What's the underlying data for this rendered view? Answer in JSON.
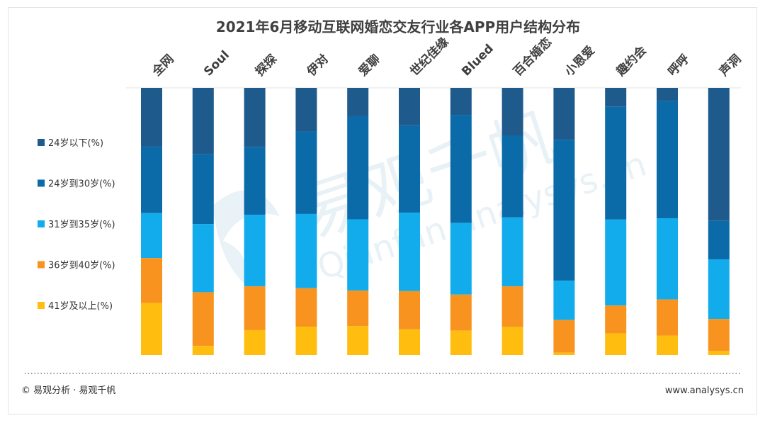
{
  "footer": {
    "copyright": "© 易观分析 · 易观千帆",
    "website": "www.analysys.cn"
  },
  "watermark": {
    "text_cn": "易观千帆",
    "text_en": "Qianfan.analysys.cn"
  },
  "chart_data": {
    "type": "bar",
    "stacked": true,
    "percent": true,
    "title": "2021年6月移动互联网婚恋交友行业各APP用户结构分布",
    "categories": [
      "全网",
      "Soul",
      "探探",
      "伊对",
      "爱聊",
      "世纪佳缘",
      "Blued",
      "百合婚恋",
      "小恩爱",
      "趣约会",
      "呼呼",
      "声洞"
    ],
    "series": [
      {
        "name": "24岁以下(%)",
        "color": "#1f5a8c",
        "values": [
          22.0,
          24.7,
          22.1,
          16.3,
          10.6,
          14.0,
          10.1,
          17.9,
          19.4,
          7.1,
          4.8,
          49.8
        ]
      },
      {
        "name": "24岁到30岁(%)",
        "color": "#0b6aa8",
        "values": [
          24.9,
          26.3,
          25.4,
          30.9,
          38.6,
          32.7,
          40.5,
          30.6,
          52.8,
          42.2,
          44.0,
          14.4
        ]
      },
      {
        "name": "31岁到35岁(%)",
        "color": "#12acec",
        "values": [
          16.8,
          25.5,
          26.8,
          27.8,
          26.7,
          29.4,
          26.8,
          25.8,
          14.7,
          32.2,
          30.4,
          22.3
        ]
      },
      {
        "name": "36岁到40岁(%)",
        "color": "#f7931e",
        "values": [
          16.8,
          20.1,
          16.4,
          14.4,
          13.3,
          14.3,
          13.5,
          15.2,
          12.2,
          10.4,
          13.5,
          12.0
        ]
      },
      {
        "name": "41岁及以上(%)",
        "color": "#ffbd0f",
        "values": [
          19.5,
          3.4,
          9.3,
          10.6,
          10.8,
          9.6,
          9.1,
          10.5,
          0.9,
          8.1,
          7.3,
          1.5
        ]
      }
    ],
    "ylim": [
      0,
      100
    ],
    "legend_position": "left",
    "grid": false
  }
}
